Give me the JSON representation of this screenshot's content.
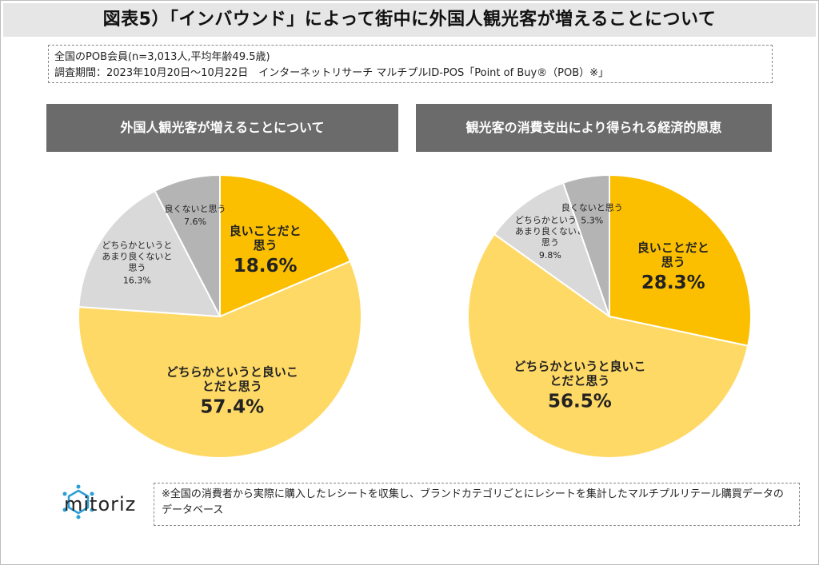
{
  "title": "図表5）「インバウンド」によって街中に外国人観光客が増えることについて",
  "info": {
    "line1": "全国のPOB会員(n=3,013人,平均年齢49.5歳)",
    "line2": "調査期間：2023年10月20日～10月22日　インターネットリサーチ マルチプルID-POS「Point of Buy®（POB）※」"
  },
  "footnote": "※全国の消費者から実際に購入したレシートを収集し、ブランドカテゴリごとにレシートを集計したマルチプルリテール購買データのデータベース",
  "logo_text": "mitoriz",
  "colors": {
    "good": "#fbbf00",
    "somewhat_good": "#ffd966",
    "somewhat_bad": "#d9d9d9",
    "bad": "#b4b4b4",
    "panel": "#6b6b6b"
  },
  "chart_data": [
    {
      "type": "pie",
      "title": "外国人観光客が増えることについて",
      "slices": [
        {
          "label": "良いことだと思う",
          "label_lines": [
            "良いことだと",
            "思う"
          ],
          "value": 18.6,
          "display": "18.6%",
          "color": "#fbbf00"
        },
        {
          "label": "どちらかというと良いことだと思う",
          "label_lines": [
            "どちらかというと良いこ",
            "とだと思う"
          ],
          "value": 57.4,
          "display": "57.4%",
          "color": "#ffd966"
        },
        {
          "label": "どちらかというとあまり良くないと思う",
          "label_lines": [
            "どちらかというと",
            "あまり良くないと",
            "思う"
          ],
          "value": 16.3,
          "display": "16.3%",
          "color": "#d9d9d9"
        },
        {
          "label": "良くないと思う",
          "label_lines": [
            "良くないと思う"
          ],
          "value": 7.6,
          "display": "7.6%",
          "color": "#b4b4b4"
        }
      ]
    },
    {
      "type": "pie",
      "title": "観光客の消費支出により得られる経済的恩恵",
      "slices": [
        {
          "label": "良いことだと思う",
          "label_lines": [
            "良いことだと",
            "思う"
          ],
          "value": 28.3,
          "display": "28.3%",
          "color": "#fbbf00"
        },
        {
          "label": "どちらかというと良いことだと思う",
          "label_lines": [
            "どちらかというと良いこ",
            "とだと思う"
          ],
          "value": 56.5,
          "display": "56.5%",
          "color": "#ffd966"
        },
        {
          "label": "どちらかというとあまり良くないと思う",
          "label_lines": [
            "どちらかというと",
            "あまり良くないと",
            "思う"
          ],
          "value": 9.8,
          "display": "9.8%",
          "color": "#d9d9d9"
        },
        {
          "label": "良くないと思う",
          "label_lines": [
            "良くないと思う"
          ],
          "value": 5.3,
          "display": "5.3%",
          "color": "#b4b4b4"
        }
      ]
    }
  ]
}
